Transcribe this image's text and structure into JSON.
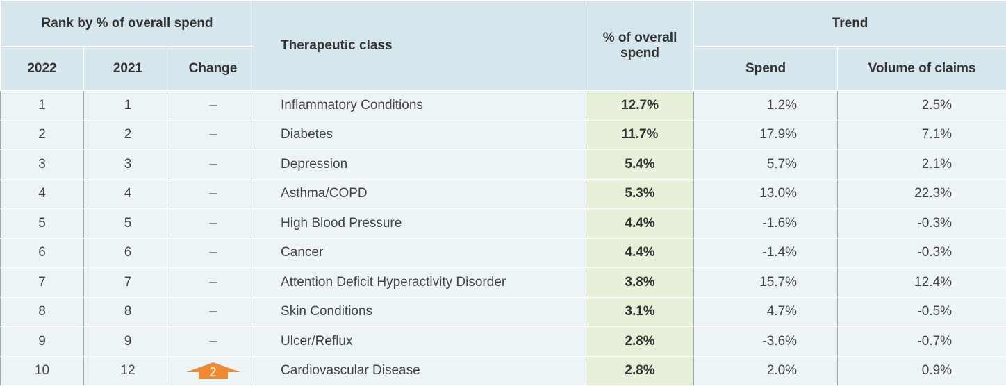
{
  "table": {
    "header": {
      "rank_group": "Rank by % of overall spend",
      "year_2022": "2022",
      "year_2021": "2021",
      "change": "Change",
      "class": "Therapeutic class",
      "pct": "% of overall spend",
      "trend_group": "Trend",
      "spend": "Spend",
      "volume": "Volume of claims"
    },
    "rows": [
      {
        "rank_2022": "1",
        "rank_2021": "1",
        "change": "–",
        "class": "Inflammatory Conditions",
        "pct": "12.7%",
        "spend": "1.2%",
        "volume": "2.5%"
      },
      {
        "rank_2022": "2",
        "rank_2021": "2",
        "change": "–",
        "class": "Diabetes",
        "pct": "11.7%",
        "spend": "17.9%",
        "volume": "7.1%"
      },
      {
        "rank_2022": "3",
        "rank_2021": "3",
        "change": "–",
        "class": "Depression",
        "pct": "5.4%",
        "spend": "5.7%",
        "volume": "2.1%"
      },
      {
        "rank_2022": "4",
        "rank_2021": "4",
        "change": "–",
        "class": "Asthma/COPD",
        "pct": "5.3%",
        "spend": "13.0%",
        "volume": "22.3%"
      },
      {
        "rank_2022": "5",
        "rank_2021": "5",
        "change": "–",
        "class": "High Blood Pressure",
        "pct": "4.4%",
        "spend": "-1.6%",
        "volume": "-0.3%"
      },
      {
        "rank_2022": "6",
        "rank_2021": "6",
        "change": "–",
        "class": "Cancer",
        "pct": "4.4%",
        "spend": "-1.4%",
        "volume": "-0.3%"
      },
      {
        "rank_2022": "7",
        "rank_2021": "7",
        "change": "–",
        "class": "Attention Deficit Hyperactivity Disorder",
        "pct": "3.8%",
        "spend": "15.7%",
        "volume": "12.4%"
      },
      {
        "rank_2022": "8",
        "rank_2021": "8",
        "change": "–",
        "class": "Skin Conditions",
        "pct": "3.1%",
        "spend": "4.7%",
        "volume": "-0.5%"
      },
      {
        "rank_2022": "9",
        "rank_2021": "9",
        "change": "–",
        "class": "Ulcer/Reflux",
        "pct": "2.8%",
        "spend": "-3.6%",
        "volume": "-0.7%"
      },
      {
        "rank_2022": "10",
        "rank_2021": "12",
        "change": "2",
        "direction": "up",
        "class": "Cardiovascular Disease",
        "pct": "2.8%",
        "spend": "2.0%",
        "volume": "0.9%"
      }
    ]
  }
}
